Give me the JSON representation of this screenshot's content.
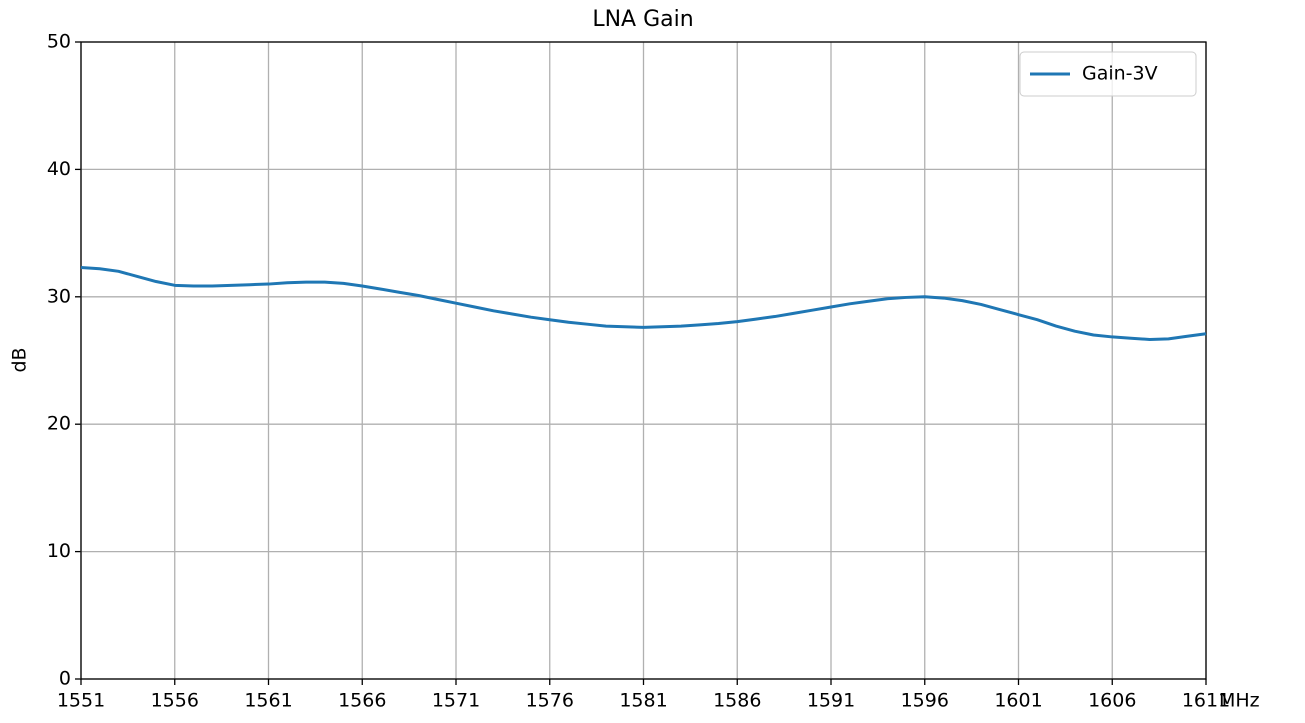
{
  "chart_data": {
    "type": "line",
    "title": "LNA Gain",
    "ylabel": "dB",
    "xlabel": "MHz",
    "x": [
      1551,
      1552,
      1553,
      1554,
      1555,
      1556,
      1557,
      1558,
      1559,
      1560,
      1561,
      1562,
      1563,
      1564,
      1565,
      1566,
      1567,
      1568,
      1569,
      1570,
      1571,
      1572,
      1573,
      1574,
      1575,
      1576,
      1577,
      1578,
      1579,
      1580,
      1581,
      1582,
      1583,
      1584,
      1585,
      1586,
      1587,
      1588,
      1589,
      1590,
      1591,
      1592,
      1593,
      1594,
      1595,
      1596,
      1597,
      1598,
      1599,
      1600,
      1601,
      1602,
      1603,
      1604,
      1605,
      1606,
      1607,
      1608,
      1609,
      1610,
      1611
    ],
    "series": [
      {
        "name": "Gain-3V",
        "color": "#1f77b4",
        "values": [
          32.3,
          32.2,
          32.0,
          31.6,
          31.2,
          30.9,
          30.85,
          30.85,
          30.9,
          30.95,
          31.0,
          31.1,
          31.15,
          31.15,
          31.05,
          30.85,
          30.6,
          30.35,
          30.1,
          29.8,
          29.5,
          29.2,
          28.9,
          28.65,
          28.4,
          28.2,
          28.0,
          27.85,
          27.7,
          27.65,
          27.6,
          27.65,
          27.7,
          27.8,
          27.9,
          28.05,
          28.25,
          28.45,
          28.7,
          28.95,
          29.2,
          29.45,
          29.65,
          29.85,
          29.95,
          30.0,
          29.9,
          29.7,
          29.4,
          29.0,
          28.6,
          28.2,
          27.7,
          27.3,
          27.0,
          26.85,
          26.75,
          26.65,
          26.7,
          26.9,
          27.1
        ]
      }
    ],
    "xlim": [
      1551,
      1611
    ],
    "xticks": [
      1551,
      1556,
      1561,
      1566,
      1571,
      1576,
      1581,
      1586,
      1591,
      1596,
      1601,
      1606,
      1611
    ],
    "ylim": [
      0,
      50
    ],
    "yticks": [
      0,
      10,
      20,
      30,
      40,
      50
    ],
    "grid": true,
    "legend": "upper right"
  }
}
